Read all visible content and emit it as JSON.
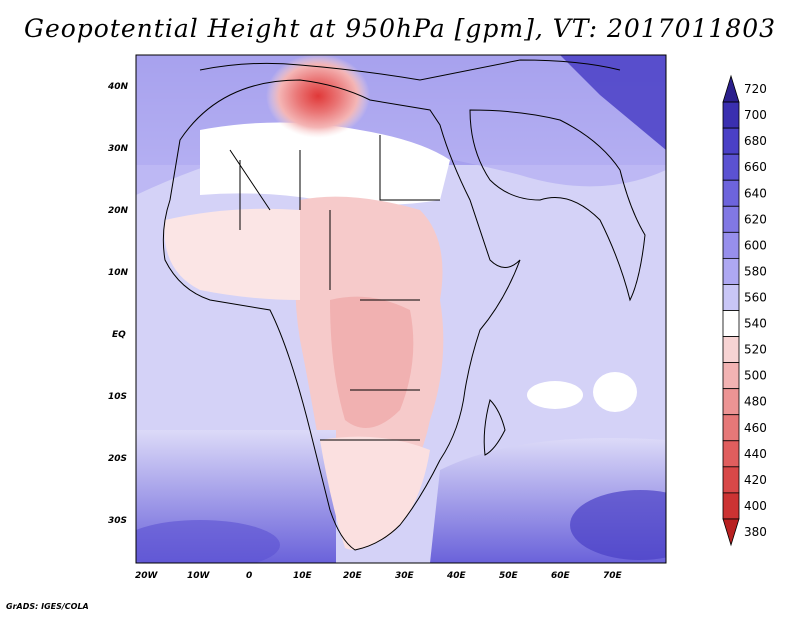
{
  "title": "Geopotential Height at 950hPa [gpm], VT: 2017011803",
  "footer": "GrADS: IGES/COLA",
  "map": {
    "lat_ticks": [
      "40N",
      "30N",
      "20N",
      "10N",
      "EQ",
      "10S",
      "20S",
      "30S"
    ],
    "lon_ticks": [
      "20W",
      "10W",
      "0",
      "10E",
      "20E",
      "30E",
      "40E",
      "50E",
      "60E",
      "70E"
    ]
  },
  "colorbar": {
    "labels": [
      "720",
      "700",
      "680",
      "660",
      "640",
      "620",
      "600",
      "580",
      "560",
      "540",
      "520",
      "500",
      "480",
      "460",
      "440",
      "420",
      "400",
      "380"
    ],
    "colors": [
      "#2b1f8c",
      "#3a2fb0",
      "#4a40c6",
      "#5b52d2",
      "#6d64dc",
      "#8178e4",
      "#978fec",
      "#aea8f2",
      "#c9c6f6",
      "#ffffff",
      "#f7d3d3",
      "#f2b3b3",
      "#ec9494",
      "#e67878",
      "#e05e5e",
      "#d84848",
      "#cc3333",
      "#b82020"
    ]
  }
}
